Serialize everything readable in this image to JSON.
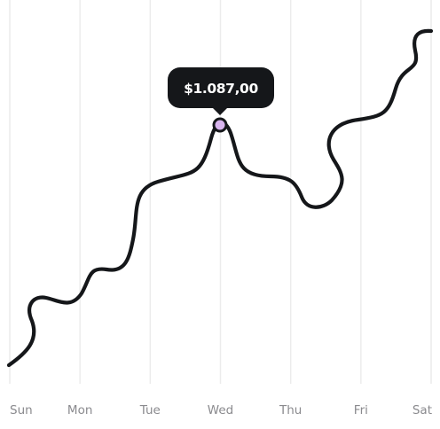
{
  "chart_data": {
    "type": "line",
    "categories": [
      "Sun",
      "Mon",
      "Tue",
      "Wed",
      "Thu",
      "Fri",
      "Sat"
    ],
    "highlight": {
      "category": "Wed",
      "label": "$1.087,00",
      "value": 1087
    },
    "grid": "vertical",
    "colors": {
      "line": "#15171a",
      "grid": "#ececec",
      "tooltip_bg": "#15171a",
      "tooltip_text": "#ffffff",
      "point_fill": "#d8b4ee",
      "tick_text": "#8a8a8e"
    }
  }
}
